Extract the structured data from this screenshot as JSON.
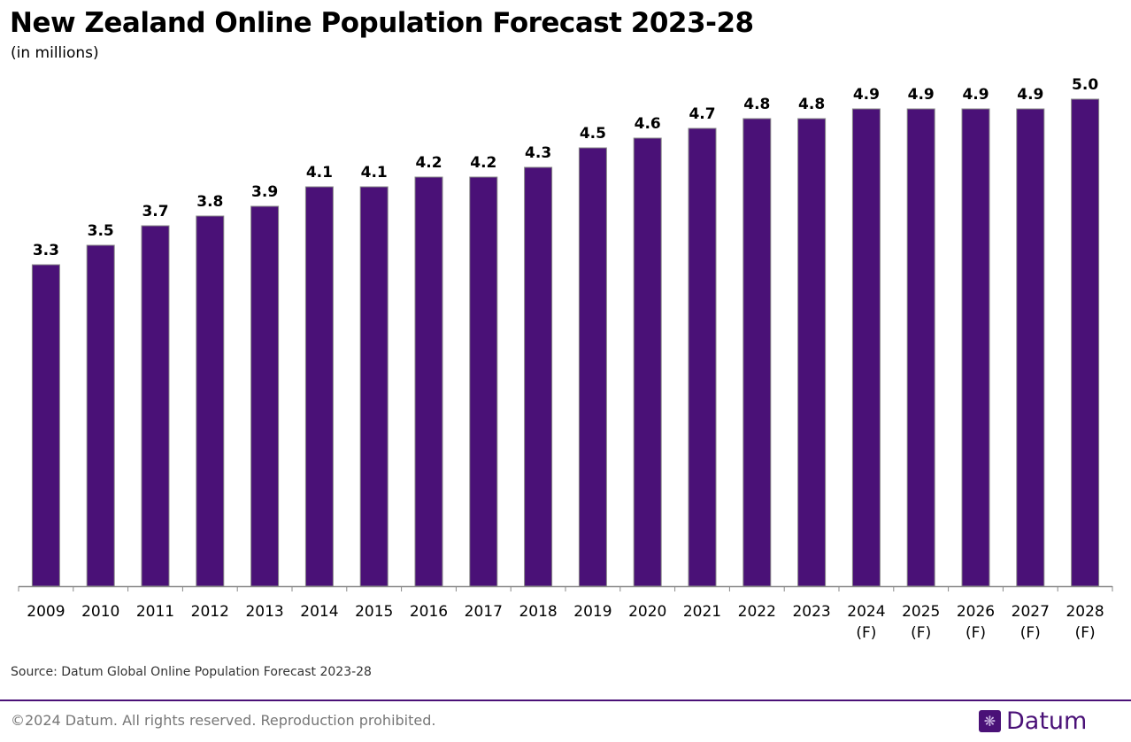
{
  "title": "New Zealand Online Population Forecast 2023-28",
  "subtitle": "(in millions)",
  "source": "Source: Datum Global Online Population Forecast 2023-28",
  "copyright": "©2024 Datum. All rights reserved. Reproduction prohibited.",
  "logo": {
    "text": "Datum",
    "icon": "globe-icon"
  },
  "colors": {
    "bar": "#4a1177",
    "bar_border": "#888888",
    "accent": "#4a1177"
  },
  "chart_data": {
    "type": "bar",
    "title": "New Zealand Online Population Forecast 2023-28",
    "subtitle": "(in millions)",
    "categories": [
      "2009",
      "2010",
      "2011",
      "2012",
      "2013",
      "2014",
      "2015",
      "2016",
      "2017",
      "2018",
      "2019",
      "2020",
      "2021",
      "2022",
      "2023",
      "2024\n(F)",
      "2025\n(F)",
      "2026\n(F)",
      "2027\n(F)",
      "2028\n(F)"
    ],
    "values": [
      3.3,
      3.5,
      3.7,
      3.8,
      3.9,
      4.1,
      4.1,
      4.2,
      4.2,
      4.3,
      4.5,
      4.6,
      4.7,
      4.8,
      4.8,
      4.9,
      4.9,
      4.9,
      4.9,
      5.0
    ],
    "data_labels": [
      "3.3",
      "3.5",
      "3.7",
      "3.8",
      "3.9",
      "4.1",
      "4.1",
      "4.2",
      "4.2",
      "4.3",
      "4.5",
      "4.6",
      "4.7",
      "4.8",
      "4.8",
      "4.9",
      "4.9",
      "4.9",
      "4.9",
      "5.0"
    ],
    "ylim": [
      0,
      5.0
    ],
    "grid": false,
    "y_axis_visible": false,
    "legend": "none"
  }
}
